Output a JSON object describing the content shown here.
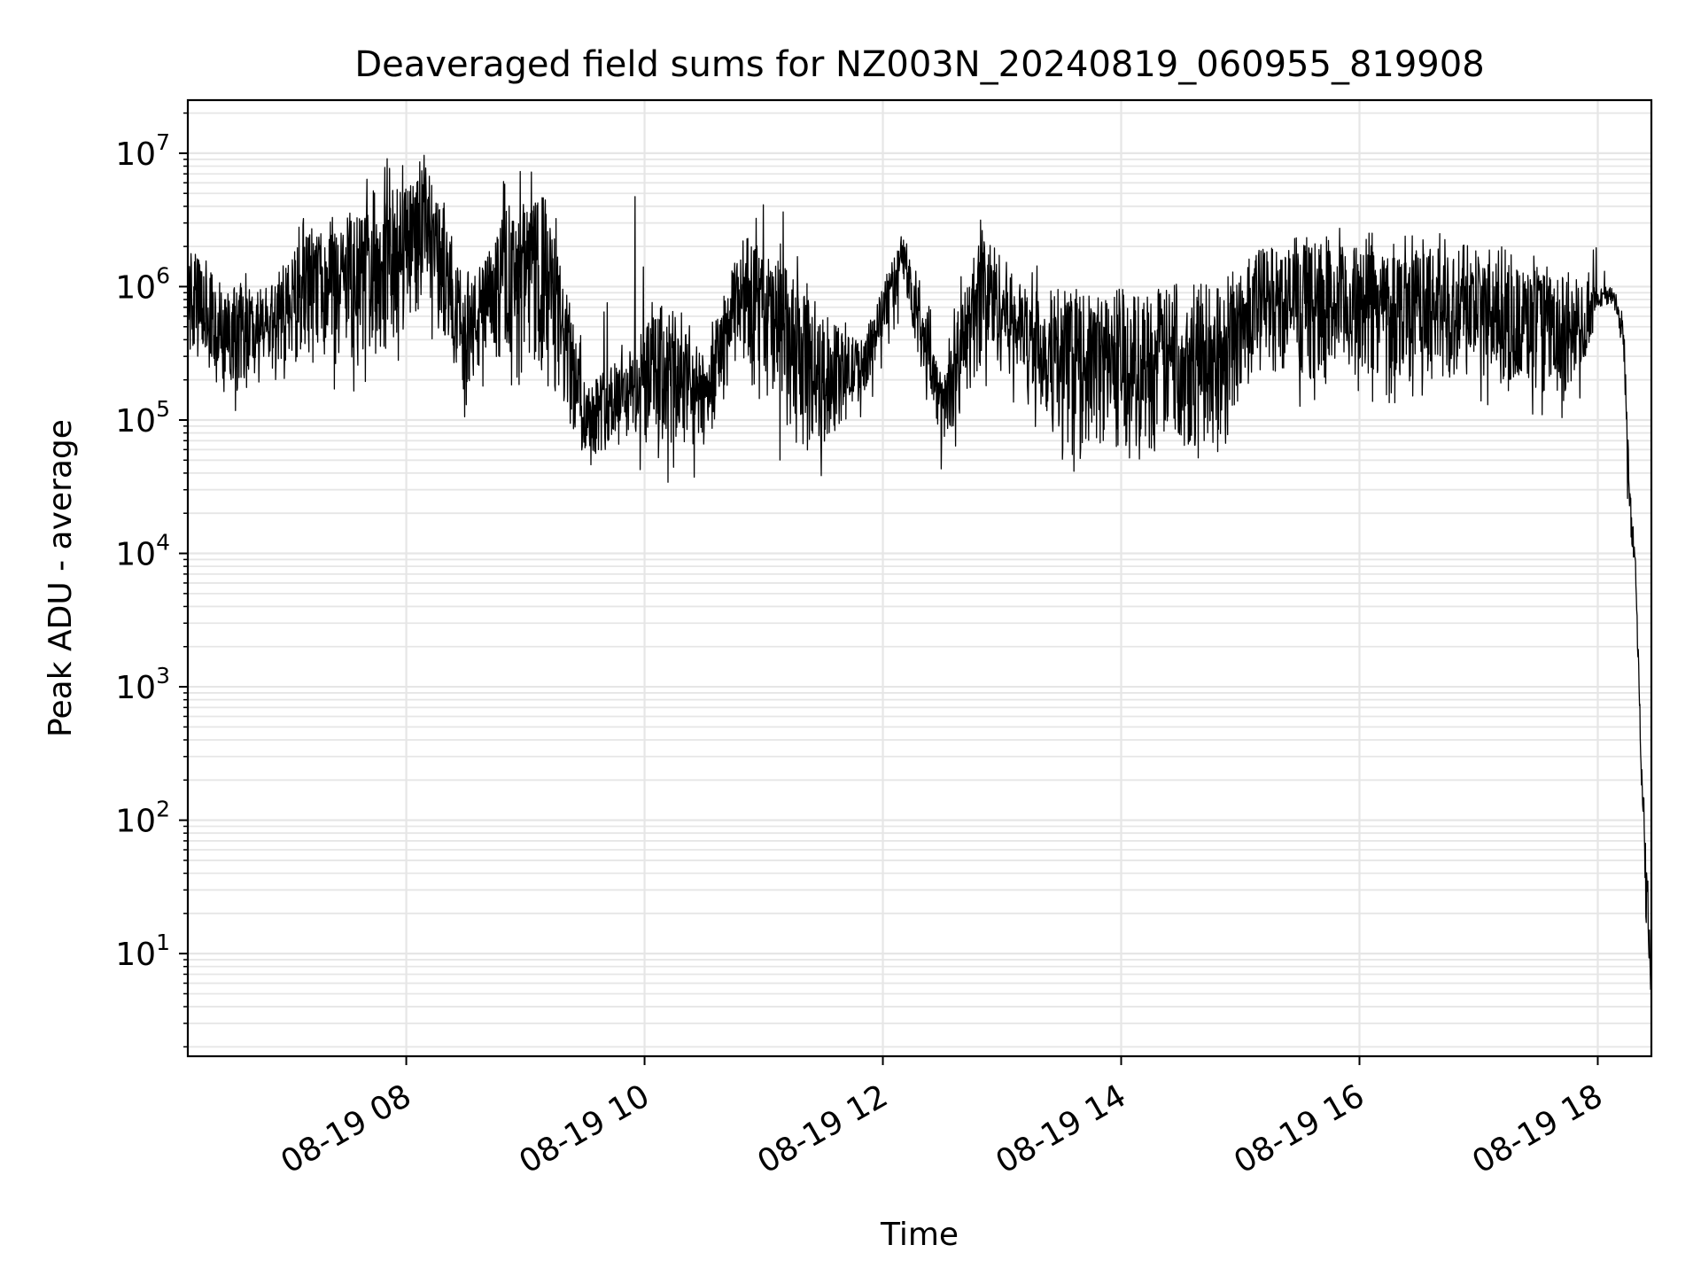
{
  "chart_data": {
    "type": "line",
    "title": "Deaveraged field sums for NZ003N_20240819_060955_819908",
    "xlabel": "Time",
    "ylabel": "Peak ADU - average",
    "yscale": "log",
    "grid": true,
    "legend": "none",
    "line_color": "#000000",
    "grid_color": "#e6e6e6",
    "x_range": [
      "08-19 06:10",
      "08-19 18:27"
    ],
    "ylim": [
      1.7,
      25000000
    ],
    "x_ticks": [
      {
        "time": "08-19 08:00",
        "label": "08-19 08"
      },
      {
        "time": "08-19 10:00",
        "label": "08-19 10"
      },
      {
        "time": "08-19 12:00",
        "label": "08-19 12"
      },
      {
        "time": "08-19 14:00",
        "label": "08-19 14"
      },
      {
        "time": "08-19 16:00",
        "label": "08-19 16"
      },
      {
        "time": "08-19 18:00",
        "label": "08-19 18"
      }
    ],
    "y_ticks": [
      {
        "value": 10,
        "base": "10",
        "exp": "1"
      },
      {
        "value": 100,
        "base": "10",
        "exp": "2"
      },
      {
        "value": 1000,
        "base": "10",
        "exp": "3"
      },
      {
        "value": 10000,
        "base": "10",
        "exp": "4"
      },
      {
        "value": 100000,
        "base": "10",
        "exp": "5"
      },
      {
        "value": 1000000,
        "base": "10",
        "exp": "6"
      },
      {
        "value": 10000000,
        "base": "10",
        "exp": "7"
      }
    ],
    "series": [
      {
        "x": [
          "08-19 06:10",
          "08-19 06:30",
          "08-19 06:50",
          "08-19 07:10",
          "08-19 07:30",
          "08-19 07:50",
          "08-19 08:10",
          "08-19 08:30",
          "08-19 08:50",
          "08-19 09:10",
          "08-19 09:30",
          "08-19 09:50",
          "08-19 10:10",
          "08-19 10:30",
          "08-19 10:50",
          "08-19 11:10",
          "08-19 11:30",
          "08-19 11:50",
          "08-19 12:10",
          "08-19 12:30",
          "08-19 12:50",
          "08-19 13:10",
          "08-19 13:30",
          "08-19 13:50",
          "08-19 14:10",
          "08-19 14:30",
          "08-19 14:50",
          "08-19 15:10",
          "08-19 15:30",
          "08-19 15:50",
          "08-19 16:10",
          "08-19 16:30",
          "08-19 16:50",
          "08-19 17:10",
          "08-19 17:30",
          "08-19 17:50",
          "08-19 18:00",
          "08-19 18:08",
          "08-19 18:13",
          "08-19 18:16",
          "08-19 18:19",
          "08-19 18:22",
          "08-19 18:24",
          "08-19 18:26",
          "08-19 18:27"
        ],
        "low": [
          300000,
          150000,
          200000,
          300000,
          250000,
          300000,
          800000,
          150000,
          300000,
          200000,
          50000,
          70000,
          50000,
          60000,
          350000,
          60000,
          60000,
          150000,
          1000000,
          60000,
          250000,
          200000,
          60000,
          60000,
          60000,
          60000,
          60000,
          250000,
          200000,
          200000,
          200000,
          200000,
          200000,
          200000,
          150000,
          150000,
          700000,
          700000,
          300000,
          15000,
          7000,
          150,
          20,
          5,
          4
        ],
        "high": [
          2000000,
          900000,
          1000000,
          2500000,
          3000000,
          5000000,
          8000000,
          1000000,
          3000000,
          5000000,
          200000,
          300000,
          800000,
          300000,
          2500000,
          1500000,
          500000,
          400000,
          2500000,
          200000,
          3000000,
          1000000,
          800000,
          900000,
          900000,
          1000000,
          900000,
          2000000,
          2000000,
          2000000,
          2000000,
          2000000,
          1800000,
          1500000,
          1300000,
          1000000,
          1000000,
          1000000,
          600000,
          40000,
          10000,
          300,
          100,
          20,
          6
        ],
        "peak": [
          2500000,
          1000000,
          2000000,
          3500000,
          4000000,
          10000000,
          11000000,
          1500000,
          7000000,
          9000000,
          400000,
          9500000,
          1000000,
          400000,
          5000000,
          4000000,
          600000,
          500000,
          2600000,
          400000,
          4500000,
          2500000,
          1000000,
          1000000,
          1000000,
          1100000,
          1000000,
          2500000,
          2500000,
          3000000,
          2500000,
          2500000,
          2500000,
          2000000,
          2000000,
          1200000,
          3000000,
          1000000,
          700000,
          50000,
          12000,
          400,
          150,
          30,
          6
        ]
      }
    ]
  }
}
